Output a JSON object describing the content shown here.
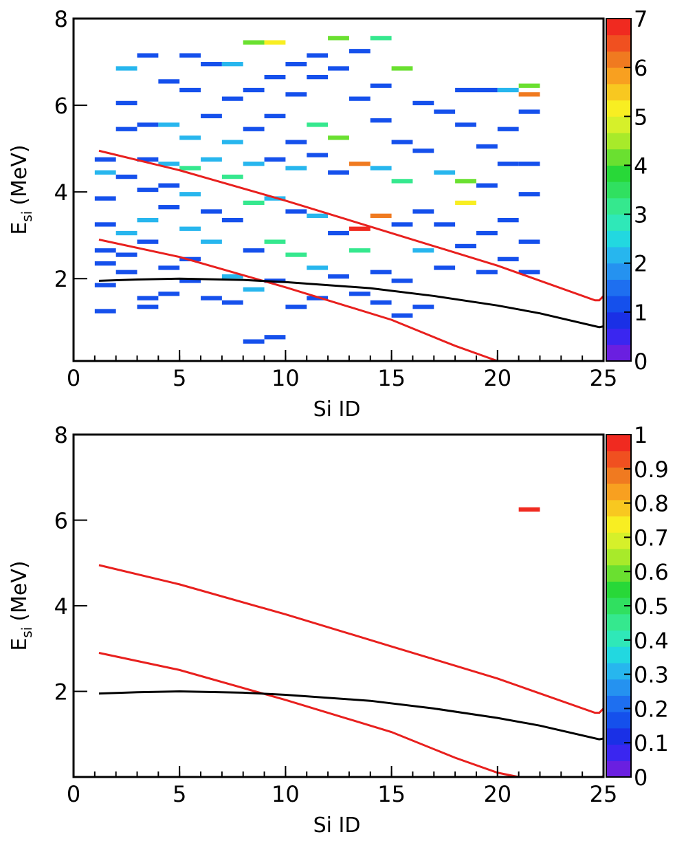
{
  "chart_data": [
    {
      "type": "heatmap",
      "xlabel": "Si ID",
      "ylabel": "E",
      "ylabel_sub": "si",
      "ylabel_unit": "(MeV)",
      "xlim": [
        0,
        25
      ],
      "ylim": [
        0.1,
        8
      ],
      "xticks": [
        0,
        5,
        10,
        15,
        20,
        25
      ],
      "yticks": [
        2,
        4,
        6,
        8
      ],
      "zlim": [
        0,
        7
      ],
      "zticks": [
        0,
        1,
        2,
        3,
        4,
        5,
        6,
        7
      ],
      "cell_w": 1,
      "cell_h": 0.1,
      "palette": [
        "#6a1fe0",
        "#3a26f0",
        "#1a30e6",
        "#1550ec",
        "#1e6ff0",
        "#2592f0",
        "#27b6ee",
        "#22d8e0",
        "#2fe8b8",
        "#35e88e",
        "#30e060",
        "#28d838",
        "#6ae030",
        "#a8ea2a",
        "#d6f02a",
        "#f8ee22",
        "#f8c820",
        "#f8a020",
        "#f07a20",
        "#f05020",
        "#f02a20"
      ],
      "cells": [
        [
          1,
          4.7,
          1
        ],
        [
          1,
          4.4,
          2
        ],
        [
          1,
          3.8,
          1
        ],
        [
          1,
          3.2,
          1
        ],
        [
          1,
          2.6,
          1
        ],
        [
          1,
          2.3,
          1
        ],
        [
          1,
          1.8,
          1
        ],
        [
          1,
          1.2,
          1
        ],
        [
          2,
          6.8,
          2
        ],
        [
          2,
          5.4,
          1
        ],
        [
          2,
          4.3,
          1
        ],
        [
          2,
          3.0,
          2
        ],
        [
          2,
          2.5,
          1
        ],
        [
          2,
          2.1,
          1
        ],
        [
          2,
          6.0,
          1
        ],
        [
          3,
          7.1,
          1
        ],
        [
          3,
          5.5,
          1
        ],
        [
          3,
          4.7,
          1
        ],
        [
          3,
          4.0,
          1
        ],
        [
          3,
          3.3,
          2
        ],
        [
          3,
          2.8,
          1
        ],
        [
          3,
          1.5,
          1
        ],
        [
          3,
          1.3,
          1
        ],
        [
          4,
          6.5,
          1
        ],
        [
          4,
          5.5,
          2
        ],
        [
          4,
          4.6,
          2
        ],
        [
          4,
          4.1,
          1
        ],
        [
          4,
          3.6,
          1
        ],
        [
          4,
          2.2,
          1
        ],
        [
          4,
          1.6,
          1
        ],
        [
          5,
          7.1,
          1
        ],
        [
          5,
          6.3,
          1
        ],
        [
          5,
          5.2,
          2
        ],
        [
          5,
          4.5,
          3
        ],
        [
          5,
          3.9,
          2
        ],
        [
          5,
          3.1,
          2
        ],
        [
          5,
          2.4,
          1
        ],
        [
          5,
          1.9,
          1
        ],
        [
          6,
          6.9,
          1
        ],
        [
          6,
          5.7,
          1
        ],
        [
          6,
          4.7,
          2
        ],
        [
          6,
          3.5,
          1
        ],
        [
          6,
          2.8,
          2
        ],
        [
          6,
          1.5,
          1
        ],
        [
          7,
          6.9,
          2
        ],
        [
          7,
          6.1,
          1
        ],
        [
          7,
          5.1,
          2
        ],
        [
          7,
          4.3,
          3
        ],
        [
          7,
          3.3,
          1
        ],
        [
          7,
          2.0,
          2
        ],
        [
          7,
          1.4,
          1
        ],
        [
          8,
          7.4,
          4
        ],
        [
          8,
          6.3,
          1
        ],
        [
          8,
          5.4,
          1
        ],
        [
          8,
          4.6,
          2
        ],
        [
          8,
          3.7,
          3
        ],
        [
          8,
          2.6,
          1
        ],
        [
          8,
          1.7,
          2
        ],
        [
          8,
          0.5,
          1
        ],
        [
          9,
          7.4,
          5
        ],
        [
          9,
          6.6,
          1
        ],
        [
          9,
          5.7,
          1
        ],
        [
          9,
          4.7,
          1
        ],
        [
          9,
          3.8,
          2
        ],
        [
          9,
          2.8,
          3
        ],
        [
          9,
          1.9,
          1
        ],
        [
          9,
          0.6,
          1
        ],
        [
          10,
          6.9,
          1
        ],
        [
          10,
          6.2,
          1
        ],
        [
          10,
          5.1,
          1
        ],
        [
          10,
          4.5,
          2
        ],
        [
          10,
          3.5,
          1
        ],
        [
          10,
          2.5,
          3
        ],
        [
          10,
          1.3,
          1
        ],
        [
          11,
          7.1,
          1
        ],
        [
          11,
          6.6,
          1
        ],
        [
          11,
          5.5,
          3
        ],
        [
          11,
          4.8,
          1
        ],
        [
          11,
          3.4,
          2
        ],
        [
          11,
          2.2,
          2
        ],
        [
          11,
          1.5,
          1
        ],
        [
          12,
          7.5,
          4
        ],
        [
          12,
          6.8,
          1
        ],
        [
          12,
          5.2,
          4
        ],
        [
          12,
          4.4,
          1
        ],
        [
          12,
          3.0,
          1
        ],
        [
          12,
          2.0,
          1
        ],
        [
          13,
          7.2,
          1
        ],
        [
          13,
          6.1,
          1
        ],
        [
          13,
          4.6,
          6
        ],
        [
          13,
          3.1,
          7
        ],
        [
          13,
          2.6,
          3
        ],
        [
          13,
          1.6,
          1
        ],
        [
          14,
          7.5,
          3
        ],
        [
          14,
          6.4,
          1
        ],
        [
          14,
          5.6,
          1
        ],
        [
          14,
          4.5,
          2
        ],
        [
          14,
          3.4,
          6
        ],
        [
          14,
          2.1,
          1
        ],
        [
          14,
          1.4,
          1
        ],
        [
          15,
          6.8,
          4
        ],
        [
          15,
          5.1,
          1
        ],
        [
          15,
          4.2,
          3
        ],
        [
          15,
          3.2,
          1
        ],
        [
          15,
          1.9,
          1
        ],
        [
          15,
          1.1,
          1
        ],
        [
          16,
          6.0,
          1
        ],
        [
          16,
          4.9,
          1
        ],
        [
          16,
          3.5,
          1
        ],
        [
          16,
          2.6,
          2
        ],
        [
          16,
          1.3,
          1
        ],
        [
          17,
          5.8,
          1
        ],
        [
          17,
          4.4,
          2
        ],
        [
          17,
          3.2,
          1
        ],
        [
          17,
          2.2,
          1
        ],
        [
          18,
          6.3,
          1
        ],
        [
          18,
          5.5,
          1
        ],
        [
          18,
          4.2,
          4
        ],
        [
          18,
          3.7,
          5
        ],
        [
          18,
          2.7,
          1
        ],
        [
          19,
          6.3,
          1
        ],
        [
          19,
          5.0,
          1
        ],
        [
          19,
          4.1,
          1
        ],
        [
          19,
          3.0,
          1
        ],
        [
          19,
          2.1,
          1
        ],
        [
          20,
          6.3,
          2
        ],
        [
          20,
          5.4,
          1
        ],
        [
          20,
          4.6,
          1
        ],
        [
          20,
          3.3,
          1
        ],
        [
          20,
          2.4,
          1
        ],
        [
          21,
          6.4,
          4
        ],
        [
          21,
          6.2,
          6
        ],
        [
          21,
          5.8,
          1
        ],
        [
          21,
          4.6,
          1
        ],
        [
          21,
          3.9,
          1
        ],
        [
          21,
          2.8,
          1
        ],
        [
          21,
          2.1,
          1
        ]
      ],
      "lines": [
        {
          "color": "#e8201e",
          "x": [
            1.2,
            5,
            10,
            15,
            20,
            24.6,
            24.8,
            25
          ],
          "y": [
            4.95,
            4.5,
            3.8,
            3.05,
            2.3,
            1.5,
            1.5,
            1.6
          ]
        },
        {
          "color": "#e8201e",
          "x": [
            1.2,
            5,
            10,
            15,
            18,
            20
          ],
          "y": [
            2.9,
            2.5,
            1.8,
            1.05,
            0.45,
            0.1
          ]
        },
        {
          "color": "#000000",
          "x": [
            1.2,
            3,
            5,
            8,
            10,
            14,
            17,
            20,
            22,
            24.8,
            25
          ],
          "y": [
            1.95,
            1.98,
            2.0,
            1.97,
            1.92,
            1.78,
            1.6,
            1.38,
            1.2,
            0.88,
            0.9
          ]
        }
      ]
    },
    {
      "type": "heatmap",
      "xlabel": "Si ID",
      "ylabel": "E",
      "ylabel_sub": "si",
      "ylabel_unit": "(MeV)",
      "xlim": [
        0,
        25
      ],
      "ylim": [
        0,
        8
      ],
      "xticks": [
        0,
        5,
        10,
        15,
        20,
        25
      ],
      "yticks": [
        2,
        4,
        6,
        8
      ],
      "zlim": [
        0,
        1
      ],
      "zticks": [
        0,
        0.1,
        0.2,
        0.3,
        0.4,
        0.5,
        0.6,
        0.7,
        0.8,
        0.9,
        1
      ],
      "cell_w": 1,
      "cell_h": 0.1,
      "palette": [
        "#6a1fe0",
        "#3a26f0",
        "#1a30e6",
        "#1550ec",
        "#1e6ff0",
        "#2592f0",
        "#27b6ee",
        "#22d8e0",
        "#2fe8b8",
        "#35e88e",
        "#30e060",
        "#28d838",
        "#6ae030",
        "#a8ea2a",
        "#d6f02a",
        "#f8ee22",
        "#f8c820",
        "#f8a020",
        "#f07a20",
        "#f05020",
        "#f02a20"
      ],
      "cells": [
        [
          21,
          6.2,
          1
        ]
      ],
      "lines": [
        {
          "color": "#e8201e",
          "x": [
            1.2,
            5,
            10,
            15,
            20,
            24.6,
            24.8,
            25
          ],
          "y": [
            4.95,
            4.5,
            3.8,
            3.05,
            2.3,
            1.5,
            1.5,
            1.6
          ]
        },
        {
          "color": "#e8201e",
          "x": [
            1.2,
            5,
            10,
            15,
            18,
            20,
            21,
            24.9,
            25
          ],
          "y": [
            2.9,
            2.5,
            1.8,
            1.05,
            0.45,
            0.1,
            0,
            0,
            0.02
          ]
        },
        {
          "color": "#000000",
          "x": [
            1.2,
            3,
            5,
            8,
            10,
            14,
            17,
            20,
            22,
            24.8,
            25
          ],
          "y": [
            1.95,
            1.98,
            2.0,
            1.97,
            1.92,
            1.78,
            1.6,
            1.38,
            1.2,
            0.88,
            0.9
          ]
        }
      ]
    }
  ]
}
